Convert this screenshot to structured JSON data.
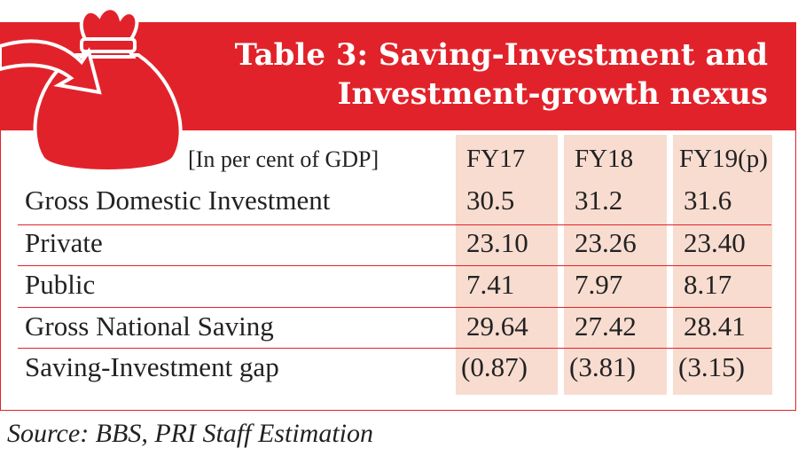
{
  "table": {
    "title_line1": "Table 3: Saving-Investment and",
    "title_line2": "Investment-growth nexus",
    "unit_note": "[In per cent of GDP]",
    "columns": [
      "FY17",
      "FY18",
      "FY19(p)"
    ],
    "rows": [
      {
        "label": "Gross Domestic Investment",
        "values": [
          "30.5",
          "31.2",
          "31.6"
        ]
      },
      {
        "label": "Private",
        "values": [
          "23.10",
          "23.26",
          "23.40"
        ]
      },
      {
        "label": "Public",
        "values": [
          "7.41",
          "7.97",
          "8.17"
        ]
      },
      {
        "label": "Gross National Saving",
        "values": [
          "29.64",
          "27.42",
          "28.41"
        ]
      },
      {
        "label": "Saving-Investment gap",
        "values": [
          "(0.87)",
          "(3.81)",
          "(3.15)"
        ]
      }
    ]
  },
  "source": "Source: BBS, PRI Staff Estimation",
  "colors": {
    "accent": "#e2222a",
    "column_fill": "#f8dcd0"
  }
}
